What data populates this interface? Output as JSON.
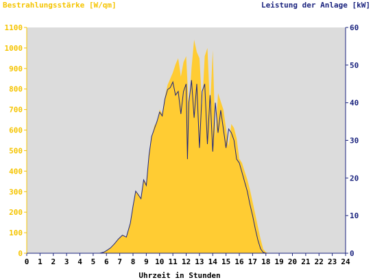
{
  "chart_data": {
    "type": "area",
    "left_axis_title": "Bestrahlungsstärke [W/qm]",
    "right_axis_title": "Leistung der Anlage [kW]",
    "xlabel": "Uhrzeit in Stunden",
    "xlim": [
      0,
      24
    ],
    "ylim_left": [
      0,
      1100
    ],
    "ylim_right": [
      0,
      60
    ],
    "x_ticks": [
      "0",
      "1",
      "2",
      "3",
      "4",
      "5",
      "6",
      "7",
      "8",
      "9",
      "10",
      "11",
      "12",
      "13",
      "14",
      "15",
      "16",
      "17",
      "18",
      "19",
      "20",
      "21",
      "22",
      "23",
      "24"
    ],
    "y_ticks_left": [
      "0",
      "100",
      "200",
      "300",
      "400",
      "500",
      "600",
      "700",
      "800",
      "900",
      "1000",
      "1100"
    ],
    "y_ticks_right": [
      "0",
      "10",
      "20",
      "30",
      "40",
      "50",
      "60"
    ],
    "colors": {
      "irradiance": "#ffcc33",
      "power": "#1a237e",
      "plot_bg": "#dcdcdc",
      "left_axis": "#f5c400",
      "right_axis": "#1a237e"
    },
    "series": [
      {
        "name": "Bestrahlungsstärke [W/qm]",
        "axis": "left",
        "x": [
          0,
          5.5,
          5.8,
          6.0,
          6.3,
          6.6,
          6.9,
          7.2,
          7.5,
          7.8,
          8.0,
          8.2,
          8.4,
          8.6,
          8.8,
          9.0,
          9.2,
          9.4,
          9.6,
          9.8,
          10.0,
          10.2,
          10.4,
          10.6,
          10.8,
          11.0,
          11.2,
          11.4,
          11.6,
          11.8,
          12.0,
          12.2,
          12.4,
          12.6,
          12.8,
          13.0,
          13.2,
          13.4,
          13.6,
          13.8,
          14.0,
          14.2,
          14.4,
          14.6,
          14.8,
          15.0,
          15.2,
          15.4,
          15.6,
          15.8,
          16.0,
          16.2,
          16.4,
          16.6,
          16.8,
          17.0,
          17.2,
          17.4,
          17.6,
          17.8,
          18.0,
          18.2,
          18.4,
          18.6,
          18.8,
          19.0,
          19.3,
          24
        ],
        "values": [
          0,
          0,
          5,
          12,
          25,
          45,
          70,
          90,
          80,
          150,
          230,
          300,
          290,
          260,
          360,
          340,
          480,
          560,
          620,
          640,
          700,
          680,
          760,
          820,
          850,
          880,
          920,
          950,
          860,
          930,
          960,
          700,
          900,
          1040,
          980,
          950,
          720,
          960,
          1000,
          700,
          990,
          560,
          780,
          740,
          700,
          610,
          520,
          630,
          610,
          560,
          460,
          440,
          400,
          360,
          310,
          250,
          190,
          130,
          70,
          20,
          5,
          0,
          0,
          0,
          0,
          0,
          0,
          0
        ]
      },
      {
        "name": "Leistung der Anlage [kW]",
        "axis": "right",
        "x": [
          0,
          5.5,
          5.8,
          6.0,
          6.3,
          6.6,
          6.9,
          7.2,
          7.5,
          7.8,
          8.0,
          8.2,
          8.4,
          8.6,
          8.8,
          9.0,
          9.2,
          9.4,
          9.6,
          9.8,
          10.0,
          10.2,
          10.4,
          10.6,
          10.8,
          11.0,
          11.2,
          11.4,
          11.6,
          11.8,
          12.0,
          12.1,
          12.2,
          12.4,
          12.6,
          12.8,
          13.0,
          13.2,
          13.4,
          13.6,
          13.8,
          14.0,
          14.2,
          14.4,
          14.6,
          14.8,
          15.0,
          15.2,
          15.4,
          15.6,
          15.8,
          16.0,
          16.2,
          16.4,
          16.6,
          16.8,
          17.0,
          17.2,
          17.4,
          17.6,
          17.8,
          18.0,
          18.2,
          18.4,
          18.6,
          18.8,
          19.0,
          19.3,
          24
        ],
        "values": [
          0,
          0,
          0.3,
          0.7,
          1.4,
          2.5,
          3.8,
          4.8,
          4.3,
          8.0,
          12.5,
          16.5,
          15.5,
          14.5,
          19.5,
          18.0,
          26.0,
          31.0,
          33.0,
          35.0,
          37.5,
          36.5,
          41.0,
          43.5,
          44.0,
          45.5,
          42.0,
          43.0,
          37.0,
          43.0,
          45.0,
          25.0,
          40.0,
          46.0,
          36.0,
          45.0,
          28.0,
          43.0,
          45.0,
          29.0,
          42.0,
          27.0,
          40.0,
          32.0,
          38.0,
          33.0,
          28.0,
          33.0,
          32.0,
          30.0,
          25.0,
          24.0,
          21.5,
          19.0,
          16.5,
          13.0,
          10.0,
          6.5,
          3.5,
          1.2,
          0.2,
          0,
          0,
          0,
          0,
          0,
          0,
          0,
          0
        ]
      }
    ]
  }
}
